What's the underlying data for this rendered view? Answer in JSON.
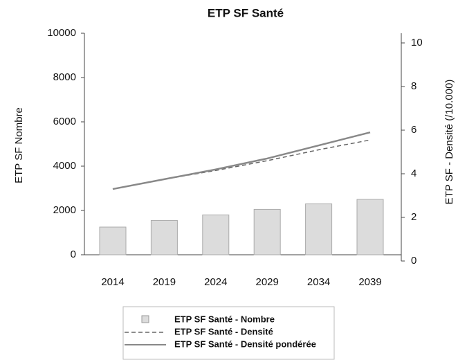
{
  "chart_data": {
    "type": "bar-line",
    "title": "ETP SF Santé",
    "y_label": "ETP SF Nombre",
    "y2_label": "ETP SF - Densité (/10.000)",
    "categories": [
      "2014",
      "2019",
      "2024",
      "2029",
      "2034",
      "2039"
    ],
    "series": [
      {
        "name": "ETP SF Santé - Nombre",
        "type": "bar",
        "color": "#dcdcdc",
        "values": [
          1250,
          1550,
          1800,
          2050,
          2300,
          2500
        ]
      },
      {
        "name": "ETP SF Santé - Densité",
        "type": "line",
        "dash": true,
        "axis": "y2",
        "color": "#666666",
        "values": [
          3.3,
          3.75,
          4.15,
          4.6,
          5.1,
          5.55
        ]
      },
      {
        "name": "ETP SF Santé - Densité pondérée",
        "type": "line",
        "dash": false,
        "axis": "y2",
        "color": "#888888",
        "values": [
          3.3,
          3.75,
          4.2,
          4.7,
          5.3,
          5.9
        ]
      }
    ],
    "ylim": [
      0,
      10000
    ],
    "yticks": [
      0,
      2000,
      4000,
      6000,
      8000,
      10000
    ],
    "y2lim": [
      0,
      10
    ],
    "y2ticks": [
      0,
      2,
      4,
      6,
      8,
      10
    ]
  }
}
